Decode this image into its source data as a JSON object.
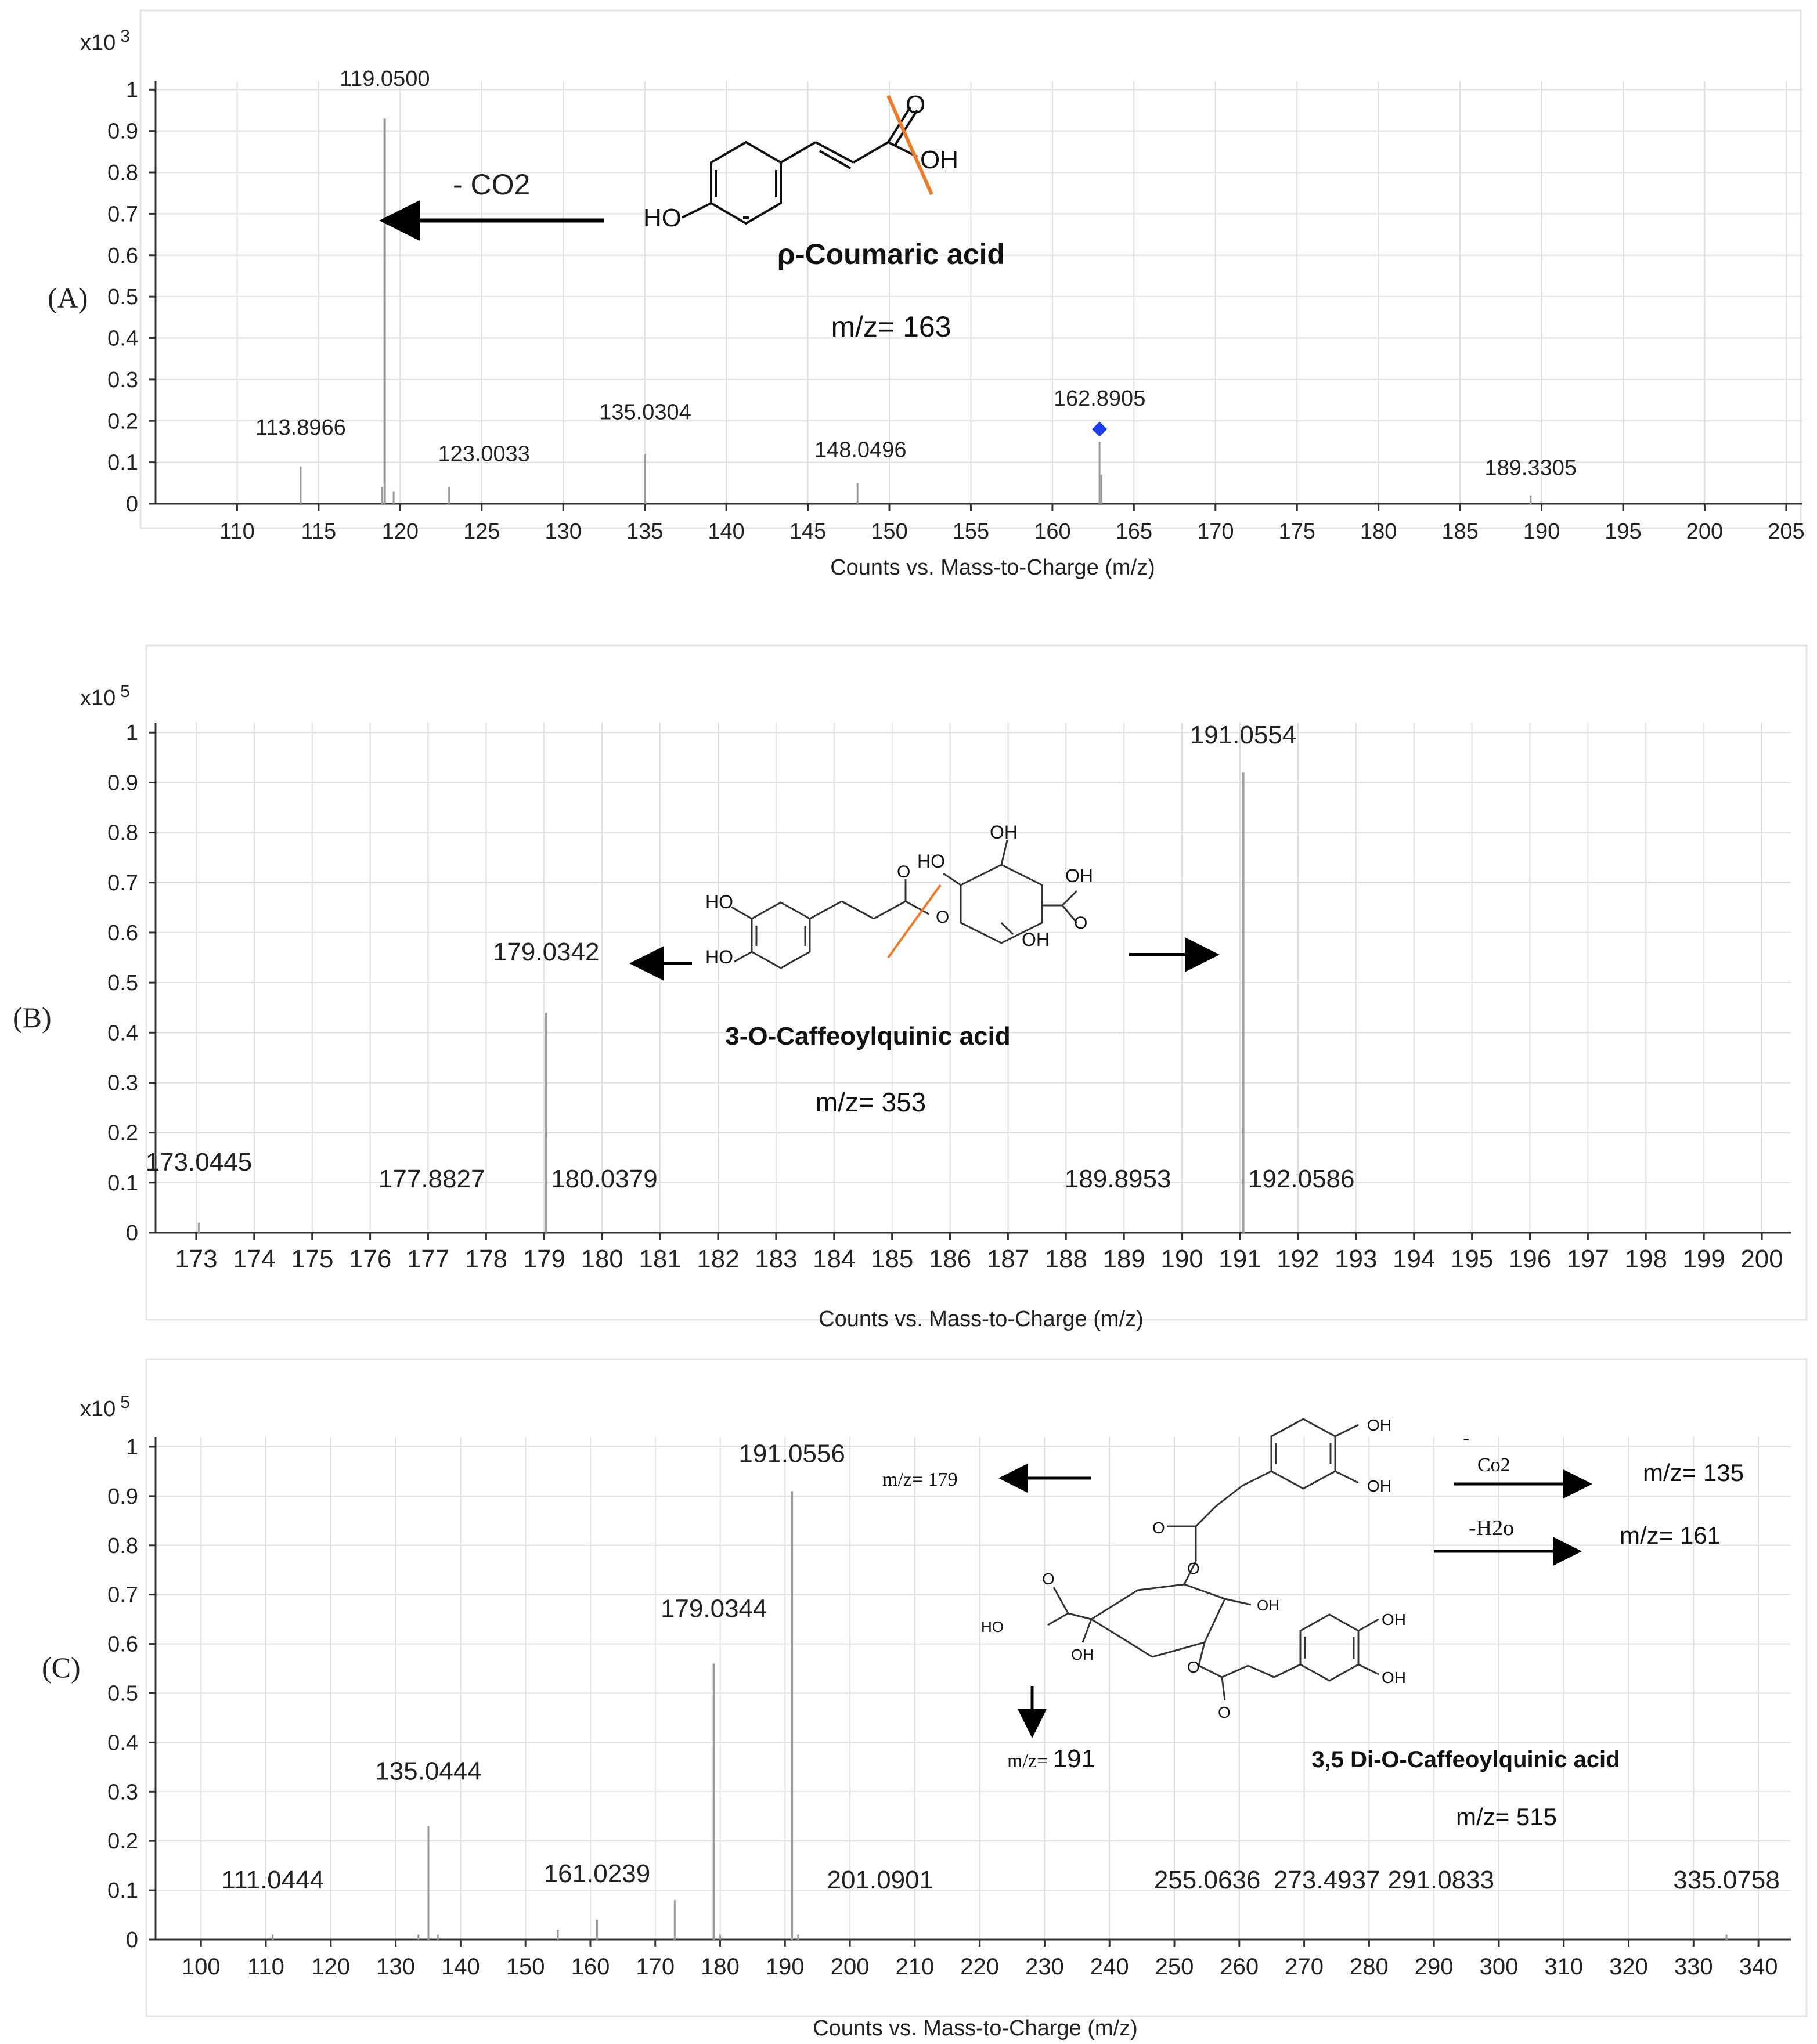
{
  "colors": {
    "bar": "#9a9a9a",
    "grid": "#dedede",
    "precursor": "#1a3ff0",
    "cleave": "#f07a28",
    "text": "#222222"
  },
  "chart_data": [
    {
      "type": "bar",
      "panel_label": "(A)",
      "scale_label": "x10",
      "scale_exp": "3",
      "xlabel": "Counts vs. Mass-to-Charge (m/z)",
      "xlim": [
        105,
        206
      ],
      "ylim": [
        0,
        1.02
      ],
      "xticks": [
        110,
        115,
        120,
        125,
        130,
        135,
        140,
        145,
        150,
        155,
        160,
        165,
        170,
        175,
        180,
        185,
        190,
        195,
        200,
        205
      ],
      "yticks": [
        0,
        0.1,
        0.2,
        0.3,
        0.4,
        0.5,
        0.6,
        0.7,
        0.8,
        0.9,
        1
      ],
      "peaks": [
        {
          "x": 113.8966,
          "y": 0.09
        },
        {
          "x": 119.05,
          "y": 0.93
        },
        {
          "x": 118.9,
          "y": 0.04
        },
        {
          "x": 119.6,
          "y": 0.03
        },
        {
          "x": 123.0033,
          "y": 0.04
        },
        {
          "x": 135.0304,
          "y": 0.12
        },
        {
          "x": 148.0496,
          "y": 0.05
        },
        {
          "x": 162.8905,
          "y": 0.15
        },
        {
          "x": 163.0,
          "y": 0.07
        },
        {
          "x": 189.3305,
          "y": 0.02
        }
      ],
      "peak_labels": [
        {
          "text": "119.0500",
          "x": 119.05,
          "y": 0.93
        },
        {
          "text": "113.8966",
          "x": 113.8966,
          "y": 0.09
        },
        {
          "text": "123.0033",
          "x": 123.0033,
          "y": 0.04
        },
        {
          "text": "135.0304",
          "x": 135.0304,
          "y": 0.12
        },
        {
          "text": "148.0496",
          "x": 148.0496,
          "y": 0.05
        },
        {
          "text": "162.8905",
          "x": 162.8905,
          "y": 0.15
        },
        {
          "text": "189.3305",
          "x": 189.3305,
          "y": 0.02
        }
      ],
      "precursor_marker": {
        "x": 162.8905,
        "y": 0.18
      },
      "annotations": {
        "loss": "- CO2",
        "compound": "ρ-Coumaric acid",
        "mz": "m/z= 163",
        "atoms": {
          "ho": "HO",
          "oh": "OH",
          "o": "O"
        }
      }
    },
    {
      "type": "bar",
      "panel_label": "(B)",
      "scale_label": "x10",
      "scale_exp": "5",
      "xlabel": "Counts vs. Mass-to-Charge (m/z)",
      "xlim": [
        172.3,
        200.5
      ],
      "ylim": [
        0,
        1.02
      ],
      "xticks": [
        173,
        174,
        175,
        176,
        177,
        178,
        179,
        180,
        181,
        182,
        183,
        184,
        185,
        186,
        187,
        188,
        189,
        190,
        191,
        192,
        193,
        194,
        195,
        196,
        197,
        198,
        199,
        200
      ],
      "yticks": [
        0,
        0.1,
        0.2,
        0.3,
        0.4,
        0.5,
        0.6,
        0.7,
        0.8,
        0.9,
        1
      ],
      "peaks": [
        {
          "x": 173.0445,
          "y": 0.02
        },
        {
          "x": 179.0342,
          "y": 0.44
        },
        {
          "x": 191.0554,
          "y": 0.92
        }
      ],
      "peak_labels": [
        {
          "text": "191.0554",
          "x": 191.0554,
          "y": 0.92
        },
        {
          "text": "179.0342",
          "x": 179.0342,
          "y": 0.44
        },
        {
          "text": "173.0445",
          "x": 173.0445,
          "y": 0.02
        },
        {
          "text": "177.8827",
          "x": 177.8827,
          "y": 0.0
        },
        {
          "text": "180.0379",
          "x": 180.0379,
          "y": 0.0
        },
        {
          "text": "189.8953",
          "x": 189.8953,
          "y": 0.0
        },
        {
          "text": "192.0586",
          "x": 192.0586,
          "y": 0.0
        }
      ],
      "annotations": {
        "compound": "3-O-Caffeoylquinic acid",
        "mz": "m/z= 353",
        "atoms": {
          "ho": "HO",
          "oh": "OH",
          "o": "O"
        }
      }
    },
    {
      "type": "bar",
      "panel_label": "(C)",
      "scale_label": "x10",
      "scale_exp": "5",
      "xlabel": "Counts vs. Mass-to-Charge (m/z)",
      "xlim": [
        93,
        345
      ],
      "ylim": [
        0,
        1.02
      ],
      "xticks": [
        100,
        110,
        120,
        130,
        140,
        150,
        160,
        170,
        180,
        190,
        200,
        210,
        220,
        230,
        240,
        250,
        260,
        270,
        280,
        290,
        300,
        310,
        320,
        330,
        340
      ],
      "yticks": [
        0,
        0.1,
        0.2,
        0.3,
        0.4,
        0.5,
        0.6,
        0.7,
        0.8,
        0.9,
        1
      ],
      "peaks": [
        {
          "x": 111.0444,
          "y": 0.01
        },
        {
          "x": 133.5,
          "y": 0.01
        },
        {
          "x": 135.0444,
          "y": 0.23
        },
        {
          "x": 136.5,
          "y": 0.01
        },
        {
          "x": 155.0,
          "y": 0.02
        },
        {
          "x": 161.0239,
          "y": 0.04
        },
        {
          "x": 173.0,
          "y": 0.08
        },
        {
          "x": 179.0344,
          "y": 0.56
        },
        {
          "x": 180.0,
          "y": 0.01
        },
        {
          "x": 191.0556,
          "y": 0.91
        },
        {
          "x": 192.0,
          "y": 0.01
        },
        {
          "x": 335.0758,
          "y": 0.01
        }
      ],
      "peak_labels": [
        {
          "text": "191.0556",
          "x": 191.0556,
          "y": 0.91
        },
        {
          "text": "179.0344",
          "x": 179.0344,
          "y": 0.56
        },
        {
          "text": "135.0444",
          "x": 135.0444,
          "y": 0.23
        },
        {
          "text": "161.0239",
          "x": 161.0239,
          "y": 0.04
        },
        {
          "text": "111.0444",
          "x": 111.0444,
          "y": 0.0
        },
        {
          "text": "201.0901",
          "x": 201.0901,
          "y": 0.0
        },
        {
          "text": "255.0636",
          "x": 255.0636,
          "y": 0.0
        },
        {
          "text": "273.4937",
          "x": 273.4937,
          "y": 0.0
        },
        {
          "text": "291.0833",
          "x": 291.0833,
          "y": 0.0
        },
        {
          "text": "335.0758",
          "x": 335.0758,
          "y": 0.0
        }
      ],
      "annotations": {
        "compound": "3,5 Di-O-Caffeoylquinic acid",
        "mz": "m/z= 515",
        "mz179_prefix": "m/z= ",
        "mz179_value": "179",
        "mz135": "m/z= 135",
        "mz161": "m/z= 161",
        "mz191_prefix": "m/z= ",
        "mz191_value": "191",
        "loss_dash": "-",
        "loss_co2": "Co2",
        "loss_h2o": "-H2o",
        "atoms": {
          "ho": "HO",
          "oh": "OH",
          "o": "O"
        }
      }
    }
  ]
}
